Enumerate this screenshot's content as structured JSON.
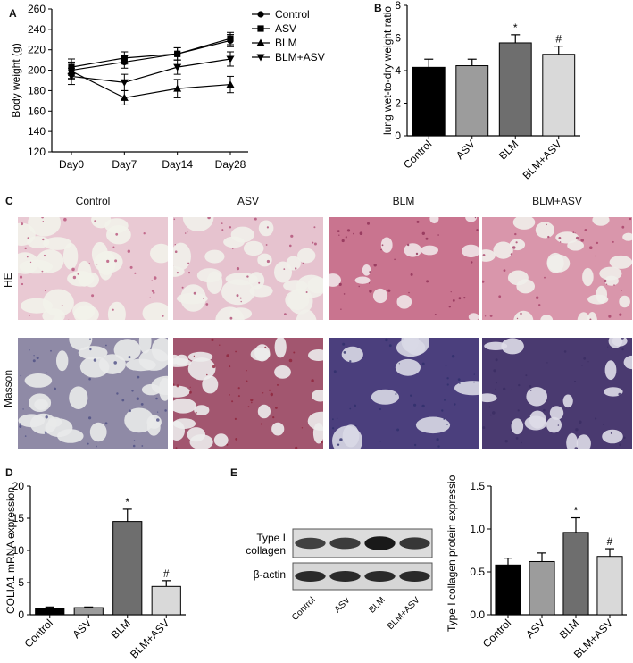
{
  "panels": {
    "A": {
      "letter": "A"
    },
    "B": {
      "letter": "B"
    },
    "C": {
      "letter": "C"
    },
    "D": {
      "letter": "D"
    },
    "E": {
      "letter": "E"
    }
  },
  "chart_data": [
    {
      "id": "A",
      "type": "line",
      "ylabel": "Body weight (g)",
      "xlabel": "",
      "categories": [
        "Day0",
        "Day7",
        "Day14",
        "Day28"
      ],
      "ylim": [
        120,
        260
      ],
      "yticks": [
        120,
        140,
        160,
        180,
        200,
        220,
        240,
        260
      ],
      "legend_position": "top-right",
      "series": [
        {
          "name": "Control",
          "marker": "circle",
          "values": [
            200,
            208,
            216,
            229
          ],
          "errors": [
            8,
            6,
            6,
            6
          ]
        },
        {
          "name": "ASV",
          "marker": "square",
          "values": [
            203,
            212,
            216,
            231
          ],
          "errors": [
            8,
            6,
            6,
            6
          ]
        },
        {
          "name": "BLM",
          "marker": "triangle-up",
          "values": [
            199,
            173,
            182,
            186
          ],
          "errors": [
            8,
            7,
            9,
            8
          ]
        },
        {
          "name": "BLM+ASV",
          "marker": "triangle-down",
          "values": [
            194,
            188,
            203,
            211
          ],
          "errors": [
            8,
            8,
            7,
            7
          ]
        }
      ]
    },
    {
      "id": "B",
      "type": "bar",
      "ylabel": "lung wet-to-dry weight ratio",
      "categories": [
        "Control",
        "ASV",
        "BLM",
        "BLM+ASV"
      ],
      "values": [
        4.2,
        4.3,
        5.7,
        5.0
      ],
      "errors": [
        0.5,
        0.4,
        0.5,
        0.5
      ],
      "colors": [
        "#000000",
        "#9c9c9c",
        "#6e6e6e",
        "#d9d9d9"
      ],
      "annotations": [
        "",
        "",
        "*",
        "#"
      ],
      "ylim": [
        0,
        8
      ],
      "yticks": [
        0,
        2,
        4,
        6,
        8
      ]
    },
    {
      "id": "D",
      "type": "bar",
      "ylabel": "COLIA1 mRNA expression",
      "categories": [
        "Control",
        "ASV",
        "BLM",
        "BLM+ASV"
      ],
      "values": [
        1.0,
        1.1,
        14.5,
        4.4
      ],
      "errors": [
        0.2,
        0.1,
        1.9,
        0.9
      ],
      "colors": [
        "#000000",
        "#9c9c9c",
        "#6e6e6e",
        "#d9d9d9"
      ],
      "annotations": [
        "",
        "",
        "*",
        "#"
      ],
      "ylim": [
        0,
        20
      ],
      "yticks": [
        0,
        5,
        10,
        15,
        20
      ]
    },
    {
      "id": "E",
      "type": "bar",
      "ylabel": "Type I collagen protein expression",
      "categories": [
        "Control",
        "ASV",
        "BLM",
        "BLM+ASV"
      ],
      "values": [
        0.58,
        0.62,
        0.96,
        0.68
      ],
      "errors": [
        0.08,
        0.1,
        0.17,
        0.09
      ],
      "colors": [
        "#000000",
        "#9c9c9c",
        "#6e6e6e",
        "#d9d9d9"
      ],
      "annotations": [
        "",
        "",
        "*",
        "#"
      ],
      "ylim": [
        0,
        1.5
      ],
      "yticks": [
        0.0,
        0.5,
        1.0,
        1.5
      ]
    }
  ],
  "histology": {
    "columns": [
      "Control",
      "ASV",
      "BLM",
      "BLM+ASV"
    ],
    "rows": [
      "HE",
      "Masson"
    ]
  },
  "blot": {
    "row_labels": [
      "Type I collagen",
      "β-actin"
    ],
    "lanes": [
      "Control",
      "ASV",
      "BLM",
      "BLM+ASV"
    ],
    "band_intensity": [
      0.55,
      0.6,
      0.95,
      0.65
    ]
  },
  "tick_format": {
    "E_decimals": 1
  }
}
